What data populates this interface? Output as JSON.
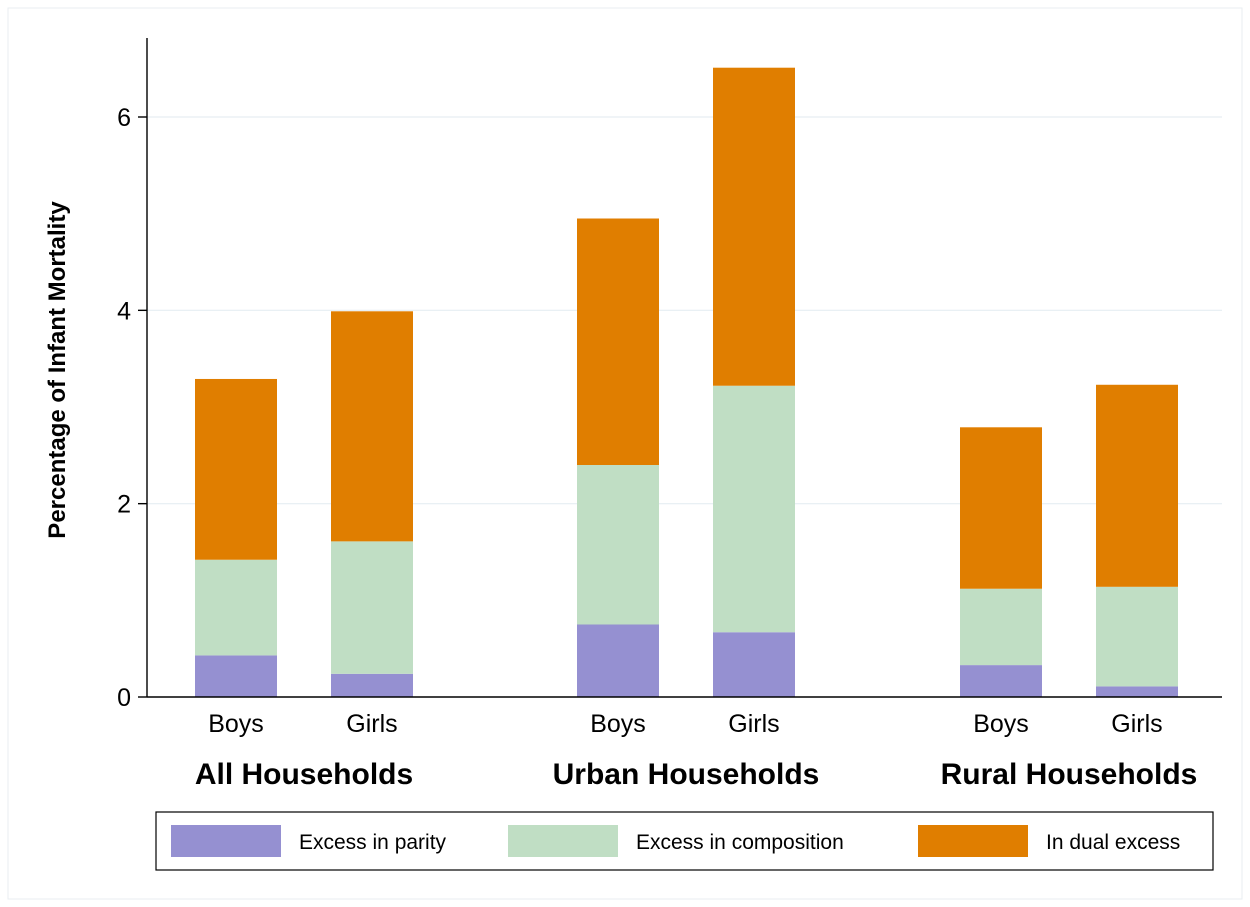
{
  "chart_data": {
    "type": "bar",
    "stacked": true,
    "ylabel": "Percentage of Infant Mortality",
    "ylim": [
      0,
      6.8
    ],
    "yticks": [
      0,
      2,
      4,
      6
    ],
    "grid": true,
    "legend_position": "bottom",
    "groups": [
      {
        "name": "All Households",
        "bars": [
          {
            "label": "Boys",
            "values": [
              0.43,
              0.99,
              1.87
            ]
          },
          {
            "label": "Girls",
            "values": [
              0.24,
              1.37,
              2.38
            ]
          }
        ]
      },
      {
        "name": "Urban Households",
        "bars": [
          {
            "label": "Boys",
            "values": [
              0.75,
              1.65,
              2.55
            ]
          },
          {
            "label": "Girls",
            "values": [
              0.67,
              2.55,
              3.29
            ]
          }
        ]
      },
      {
        "name": "Rural Households",
        "bars": [
          {
            "label": "Boys",
            "values": [
              0.33,
              0.79,
              1.67
            ]
          },
          {
            "label": "Girls",
            "values": [
              0.11,
              1.03,
              2.09
            ]
          }
        ]
      }
    ],
    "series": [
      {
        "name": "Excess in parity",
        "color": "#9590d1"
      },
      {
        "name": "Excess in composition",
        "color": "#c0dec4"
      },
      {
        "name": "In dual excess",
        "color": "#e07e00"
      }
    ]
  }
}
